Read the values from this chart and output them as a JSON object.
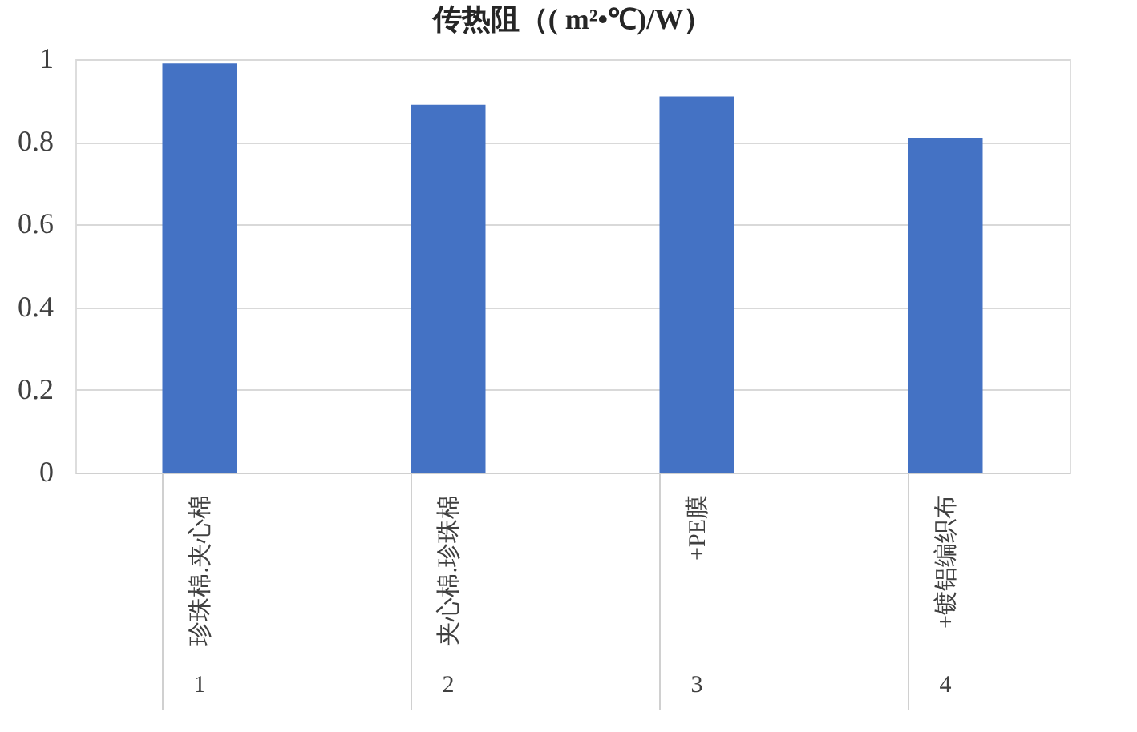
{
  "chart_data": {
    "type": "bar",
    "title": "传热阻（( m²•℃)/W）",
    "categories": [
      "珍珠棉.夹心棉",
      "夹心棉.珍珠棉",
      "+PE膜",
      "+镀铝编织布"
    ],
    "values": [
      0.99,
      0.89,
      0.91,
      0.81
    ],
    "color": "#4472c4",
    "ylim": [
      0,
      1
    ],
    "yticks": [
      0,
      0.2,
      0.4,
      0.6,
      0.8,
      1
    ],
    "grid": "y",
    "annotations": [
      "1",
      "2",
      "3",
      "4"
    ]
  }
}
